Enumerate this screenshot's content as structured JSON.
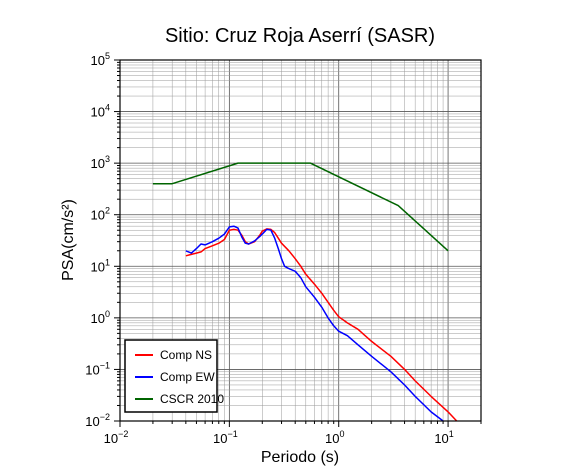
{
  "chart_data": {
    "type": "line",
    "title": "Sitio: Cruz Roja Aserrí (SASR)",
    "xlabel": "Periodo (s)",
    "ylabel": "PSA(cm/s²)",
    "xscale": "log",
    "yscale": "log",
    "xlim": [
      0.01,
      20
    ],
    "ylim": [
      0.01,
      100000
    ],
    "grid": true,
    "legend_position": "bottom-left",
    "x_tick_labels": [
      {
        "value": 0.01,
        "base": "10",
        "exp": "−2"
      },
      {
        "value": 0.1,
        "base": "10",
        "exp": "−1"
      },
      {
        "value": 1,
        "base": "10",
        "exp": "0"
      },
      {
        "value": 10,
        "base": "10",
        "exp": "1"
      }
    ],
    "y_tick_labels": [
      {
        "value": 0.01,
        "base": "10",
        "exp": "−2"
      },
      {
        "value": 0.1,
        "base": "10",
        "exp": "−1"
      },
      {
        "value": 1,
        "base": "10",
        "exp": "0"
      },
      {
        "value": 10,
        "base": "10",
        "exp": "1"
      },
      {
        "value": 100,
        "base": "10",
        "exp": "2"
      },
      {
        "value": 1000,
        "base": "10",
        "exp": "3"
      },
      {
        "value": 10000,
        "base": "10",
        "exp": "4"
      },
      {
        "value": 100000,
        "base": "10",
        "exp": "5"
      }
    ],
    "series": [
      {
        "name": "Comp NS",
        "color": "#ff0000",
        "x": [
          0.04,
          0.045,
          0.05,
          0.055,
          0.06,
          0.07,
          0.08,
          0.09,
          0.1,
          0.11,
          0.12,
          0.13,
          0.14,
          0.15,
          0.17,
          0.19,
          0.2,
          0.22,
          0.24,
          0.26,
          0.28,
          0.3,
          0.35,
          0.4,
          0.45,
          0.5,
          0.6,
          0.7,
          0.8,
          0.9,
          1.0,
          1.2,
          1.5,
          2,
          3,
          4,
          5,
          7,
          10,
          12
        ],
        "y": [
          16,
          17,
          18,
          19,
          22,
          25,
          28,
          33,
          50,
          52,
          50,
          40,
          30,
          27,
          30,
          40,
          48,
          53,
          52,
          45,
          35,
          28,
          20,
          14,
          10,
          7,
          4.5,
          3,
          2,
          1.4,
          1.05,
          0.8,
          0.6,
          0.35,
          0.18,
          0.1,
          0.06,
          0.03,
          0.015,
          0.01
        ]
      },
      {
        "name": "Comp EW",
        "color": "#0000ff",
        "x": [
          0.04,
          0.045,
          0.05,
          0.055,
          0.06,
          0.07,
          0.08,
          0.09,
          0.1,
          0.11,
          0.12,
          0.13,
          0.14,
          0.15,
          0.17,
          0.19,
          0.2,
          0.22,
          0.24,
          0.26,
          0.28,
          0.3,
          0.32,
          0.35,
          0.4,
          0.45,
          0.5,
          0.6,
          0.7,
          0.8,
          0.9,
          1.0,
          1.2,
          1.5,
          2,
          3,
          4,
          5,
          7,
          9
        ],
        "y": [
          20,
          18,
          22,
          27,
          26,
          30,
          35,
          42,
          58,
          60,
          55,
          37,
          28,
          27,
          31,
          38,
          42,
          52,
          50,
          35,
          22,
          14,
          10,
          9,
          8,
          6,
          4,
          2.5,
          1.6,
          1.0,
          0.7,
          0.55,
          0.45,
          0.3,
          0.18,
          0.09,
          0.05,
          0.03,
          0.015,
          0.01
        ]
      },
      {
        "name": "CSCR 2010",
        "color": "#006400",
        "x": [
          0.02,
          0.03,
          0.12,
          0.55,
          3.5,
          10
        ],
        "y": [
          400,
          400,
          1000,
          1000,
          150,
          20
        ]
      }
    ]
  }
}
